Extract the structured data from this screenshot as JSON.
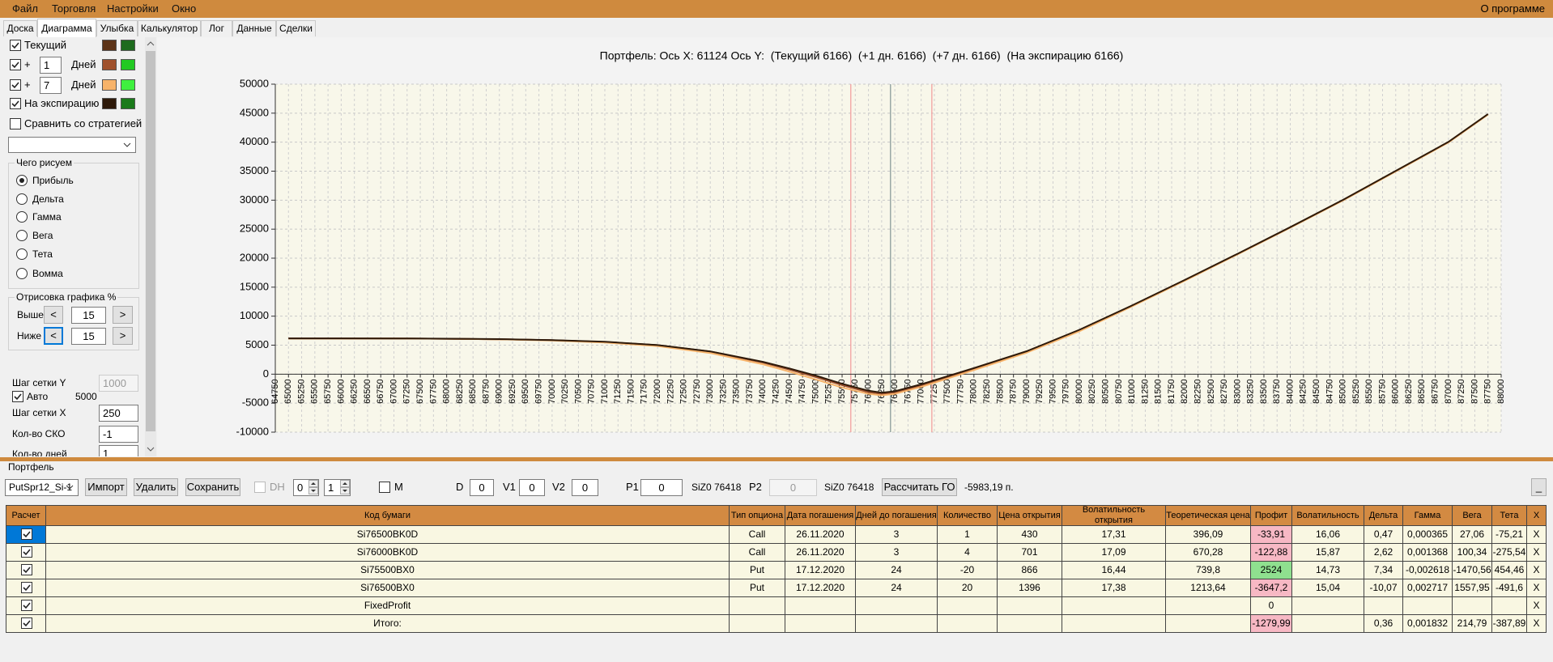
{
  "menu": [
    "Файл",
    "Торговля",
    "Настройки",
    "Окно"
  ],
  "about": "О программе",
  "tabs": [
    "Доска",
    "Диаграмма",
    "Улыбка",
    "Калькулятор",
    "Лог",
    "Данные",
    "Сделки"
  ],
  "active_tab": 1,
  "left_panel": {
    "lines": [
      {
        "checked": true,
        "label": "Текущий",
        "delta_color": "#1e6b1e"
      },
      {
        "checked": true,
        "prefix": "+",
        "days": "1",
        "unit": "Дней",
        "delta_color": "#22c922"
      },
      {
        "checked": true,
        "prefix": "+",
        "days": "7",
        "unit": "Дней",
        "delta_color": "#3ff03f"
      },
      {
        "checked": true,
        "label": "На экспирацию",
        "delta_color": "#1a7a1a"
      }
    ],
    "compare": {
      "checked": false,
      "label": "Сравнить со стратегией"
    },
    "draw_group": {
      "title": "Чего рисуем",
      "options": [
        "Прибыль",
        "Дельта",
        "Гамма",
        "Вега",
        "Тета",
        "Вомма"
      ],
      "selected": 0
    },
    "range_group": {
      "title": "Отрисовка графика %",
      "above_label": "Выше",
      "above": "15",
      "below_label": "Ниже",
      "below": "15",
      "prev": "<",
      "next": ">"
    },
    "grid_y_label": "Шаг сетки Y",
    "grid_y": "1000",
    "auto_label": "Авто",
    "auto_checked": true,
    "auto_value": "5000",
    "grid_x_label": "Шаг сетки X",
    "grid_x": "250",
    "sko_label": "Кол-во СКО",
    "sko": "-1",
    "days_label": "Кол-во дней",
    "days": "1"
  },
  "chart_data": {
    "type": "line",
    "title": "Портфель: Ось X: 61124 Ось Y:  (Текущий 6166)  (+1 дн. 6166)  (+7 дн. 6166)  (На экспирацию 6166)",
    "x": [
      65000,
      66000,
      67000,
      68000,
      69000,
      70000,
      71000,
      72000,
      73000,
      74000,
      74500,
      75000,
      75500,
      76000,
      76250,
      76500,
      77000,
      77500,
      78000,
      79000,
      80000,
      81000,
      82000,
      83000,
      84000,
      85000,
      86000,
      87000,
      87750
    ],
    "series": [
      {
        "color": "#5c3317",
        "values": [
          6150,
          6150,
          6140,
          6100,
          6020,
          5850,
          5550,
          5000,
          3900,
          2100,
          950,
          -300,
          -1700,
          -2900,
          -3250,
          -3000,
          -1800,
          -400,
          1000,
          3900,
          7600,
          11800,
          16200,
          20700,
          25300,
          30000,
          35000,
          40000,
          44800
        ]
      },
      {
        "color": "#a0522d",
        "values": [
          6150,
          6150,
          6140,
          6100,
          6020,
          5850,
          5550,
          5000,
          3850,
          2000,
          800,
          -500,
          -1900,
          -3100,
          -3400,
          -3150,
          -1950,
          -500,
          900,
          3850,
          7550,
          11800,
          16200,
          20700,
          25300,
          30000,
          35000,
          40000,
          44800
        ]
      },
      {
        "color": "#f7b36a",
        "values": [
          6150,
          6150,
          6140,
          6100,
          6000,
          5800,
          5450,
          4850,
          3650,
          1700,
          450,
          -900,
          -2300,
          -3400,
          -3650,
          -3400,
          -2200,
          -750,
          700,
          3700,
          7400,
          11700,
          16100,
          20650,
          25250,
          29950,
          34950,
          39950,
          44750
        ]
      },
      {
        "color": "#2e1a0a",
        "values": [
          6166,
          6166,
          6160,
          6120,
          6050,
          5880,
          5580,
          5020,
          3920,
          2120,
          980,
          -250,
          -1650,
          -2850,
          -3200,
          -2950,
          -1750,
          -350,
          1050,
          3950,
          7650,
          11850,
          16250,
          20750,
          25350,
          30050,
          35050,
          40050,
          44850
        ]
      }
    ],
    "vlines": [
      {
        "value": 75665,
        "color": "#f2a0a0"
      },
      {
        "value": 76418,
        "color": "#8a9a9a"
      },
      {
        "value": 77202,
        "color": "#f2a0a0"
      }
    ],
    "xlim": [
      64750,
      88000
    ],
    "xticks": [
      64750,
      65000,
      65250,
      65500,
      65750,
      66000,
      66250,
      66500,
      66750,
      67000,
      67250,
      67500,
      67750,
      68000,
      68250,
      68500,
      68750,
      69000,
      69250,
      69500,
      69750,
      70000,
      70250,
      70500,
      70750,
      71000,
      71250,
      71500,
      71750,
      72000,
      72250,
      72500,
      72750,
      73000,
      73250,
      73500,
      73750,
      74000,
      74250,
      74500,
      74750,
      75000,
      75250,
      75500,
      75750,
      76000,
      76250,
      76500,
      76750,
      77000,
      77250,
      77500,
      77750,
      78000,
      78250,
      78500,
      78750,
      79000,
      79250,
      79500,
      79750,
      80000,
      80250,
      80500,
      80750,
      81000,
      81250,
      81500,
      81750,
      82000,
      82250,
      82500,
      82750,
      83000,
      83250,
      83500,
      83750,
      84000,
      84250,
      84500,
      84750,
      85000,
      85250,
      85500,
      85750,
      86000,
      86250,
      86500,
      86750,
      87000,
      87250,
      87500,
      87750,
      88000
    ],
    "ylim": [
      -10000,
      50000
    ],
    "yticks": [
      -10000,
      -5000,
      0,
      5000,
      10000,
      15000,
      20000,
      25000,
      30000,
      35000,
      40000,
      45000,
      50000
    ],
    "grid": true
  },
  "portfolio": {
    "title": "Портфель",
    "strategy": "PutSpr12_Si-1",
    "buttons": [
      "Импорт",
      "Удалить",
      "Сохранить"
    ],
    "dh": "DH",
    "spin1": "0",
    "spin2": "1",
    "m": "М",
    "d_label": "D",
    "d": "0",
    "v1_label": "V1",
    "v1": "0",
    "v2_label": "V2",
    "v2": "0",
    "p1_label": "P1",
    "p1": "0",
    "p1_info": "SiZ0 76418",
    "p2_label": "P2",
    "p2": "0",
    "p2_info": "SiZ0 76418",
    "calc_button": "Рассчитать ГО",
    "margin": "-5983,19 п.",
    "minimize": "_"
  },
  "table": {
    "columns": [
      "Расчет",
      "Код бумаги",
      "Тип опциона",
      "Дата погашения",
      "Дней до погашения",
      "Количество",
      "Цена открытия",
      "Волатильность открытия",
      "Теоретическая цена",
      "Профит",
      "Волатильность",
      "Дельта",
      "Гамма",
      "Вега",
      "Тета",
      "X"
    ],
    "calc": [
      true,
      true,
      true,
      true,
      true,
      true
    ],
    "selected_row": 0,
    "rows": [
      [
        "Si76500BK0D",
        "Call",
        "26.11.2020",
        "3",
        "1",
        "430",
        "17,31",
        "396,09",
        "-33,91",
        "16,06",
        "0,47",
        "0,000365",
        "27,06",
        "-75,21",
        "X"
      ],
      [
        "Si76000BK0D",
        "Call",
        "26.11.2020",
        "3",
        "4",
        "701",
        "17,09",
        "670,28",
        "-122,88",
        "15,87",
        "2,62",
        "0,001368",
        "100,34",
        "-275,54",
        "X"
      ],
      [
        "Si75500BX0",
        "Put",
        "17.12.2020",
        "24",
        "-20",
        "866",
        "16,44",
        "739,8",
        "2524",
        "14,73",
        "7,34",
        "-0,002618",
        "-1470,56",
        "454,46",
        "X"
      ],
      [
        "Si76500BX0",
        "Put",
        "17.12.2020",
        "24",
        "20",
        "1396",
        "17,38",
        "1213,64",
        "-3647,2",
        "15,04",
        "-10,07",
        "0,002717",
        "1557,95",
        "-491,6",
        "X"
      ],
      [
        "FixedProfit",
        null,
        null,
        null,
        null,
        null,
        null,
        null,
        "0",
        null,
        null,
        null,
        null,
        null,
        "X"
      ],
      [
        "Итого:",
        null,
        null,
        null,
        null,
        null,
        null,
        null,
        "-1279,99",
        null,
        "0,36",
        "0,001832",
        "214,79",
        "-387,89",
        "X"
      ]
    ],
    "profit_colors": [
      "#f7b8c4",
      "#f7b8c4",
      "#8fe08f",
      "#f7b8c4",
      null,
      "#f7b8c4"
    ]
  }
}
